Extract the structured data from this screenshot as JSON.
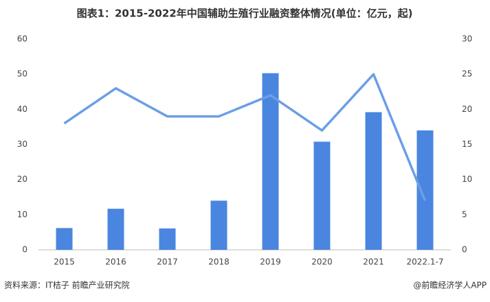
{
  "chart_data": {
    "type": "bar",
    "title": "图表1：2015-2022年中国辅助生殖行业融资整体情况(单位：亿元，起)",
    "source": "资料来源：IT桔子 前瞻产业研究院",
    "credit": "@前瞻经济学人APP",
    "categories": [
      "2015",
      "2016",
      "2017",
      "2018",
      "2019",
      "2020",
      "2021",
      "2022.1-7"
    ],
    "series": [
      {
        "type": "bar",
        "color": "#4a86e0",
        "values": [
          6.2,
          11.7,
          6.1,
          14,
          50.3,
          30.8,
          39.2,
          34
        ]
      },
      {
        "type": "line",
        "axis": "y2",
        "color": "#6b9ee6",
        "values": [
          18,
          23,
          19,
          19,
          22,
          17,
          25,
          7
        ]
      }
    ],
    "ylim": [
      0,
      60
    ],
    "yticks": [
      0,
      10,
      20,
      30,
      40,
      50,
      60
    ],
    "y2lim": [
      0,
      30
    ],
    "y2ticks": [
      0,
      5,
      10,
      15,
      20,
      25,
      30
    ],
    "grid": false
  }
}
